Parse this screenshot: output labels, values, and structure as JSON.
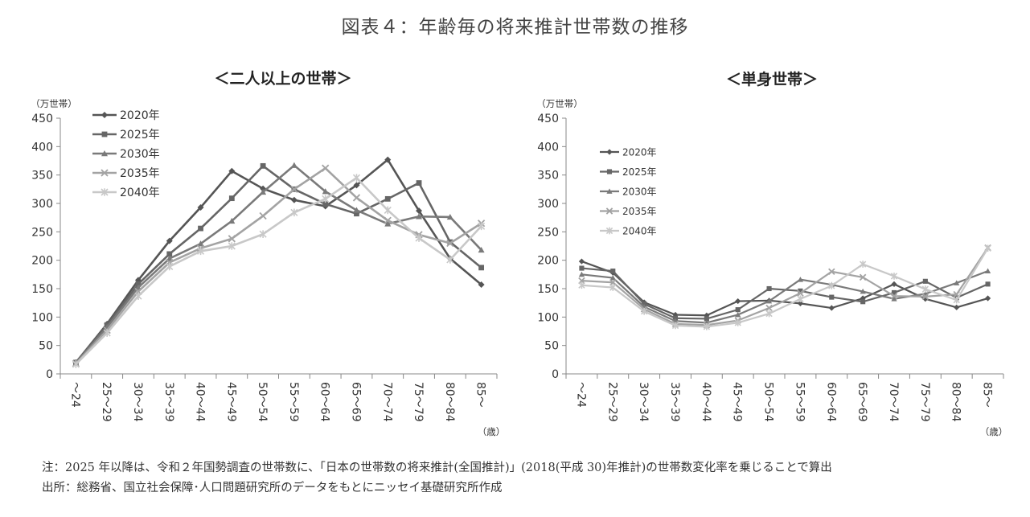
{
  "title": "図表４：年齢毎の将来推計世帯数の推移",
  "notes": {
    "note": "注：2025 年以降は、令和２年国勢調査の世帯数に、「日本の世帯数の将来推計(全国推計)」(2018(平成 30)年推計)の世帯数変化率を乗じることで算出",
    "source": "出所：総務省、国立社会保障･人口問題研究所のデータをもとにニッセイ基礎研究所作成"
  },
  "series_colors": {
    "2020年": "#555555",
    "2025年": "#666666",
    "2030年": "#7a7a7a",
    "2035年": "#a3a3a3",
    "2040年": "#c8c8c8"
  },
  "series_markers": {
    "2020年": "diamond",
    "2025年": "square",
    "2030年": "triangle",
    "2035年": "x",
    "2040年": "star"
  },
  "chart_data": [
    {
      "type": "line",
      "title": "＜二人以上の世帯＞",
      "ylabel": "（万世帯）",
      "xlabel": "（歳）",
      "ylim": [
        0,
        450
      ],
      "yticks": [
        0,
        50,
        100,
        150,
        200,
        250,
        300,
        350,
        400,
        450
      ],
      "legend_position": "top-left",
      "categories": [
        "～24",
        "25～29",
        "30～34",
        "35～39",
        "40～44",
        "45～49",
        "50～54",
        "55～59",
        "60～64",
        "65～69",
        "70～74",
        "75～79",
        "80～84",
        "85～"
      ],
      "series": [
        {
          "name": "2020年",
          "values": [
            20,
            88,
            165,
            234,
            293,
            357,
            326,
            306,
            295,
            332,
            377,
            287,
            203,
            157
          ]
        },
        {
          "name": "2025年",
          "values": [
            20,
            86,
            158,
            211,
            256,
            309,
            366,
            325,
            299,
            282,
            308,
            336,
            232,
            187
          ]
        },
        {
          "name": "2030年",
          "values": [
            19,
            82,
            152,
            203,
            229,
            269,
            320,
            367,
            321,
            288,
            264,
            277,
            276,
            218
          ]
        },
        {
          "name": "2035年",
          "values": [
            18,
            77,
            145,
            196,
            221,
            238,
            278,
            325,
            362,
            310,
            270,
            245,
            230,
            265
          ]
        },
        {
          "name": "2040年",
          "values": [
            17,
            72,
            137,
            189,
            216,
            225,
            246,
            284,
            308,
            345,
            288,
            239,
            201,
            260
          ]
        }
      ]
    },
    {
      "type": "line",
      "title": "＜単身世帯＞",
      "ylabel": "（万世帯）",
      "xlabel": "（歳）",
      "ylim": [
        0,
        450
      ],
      "yticks": [
        0,
        50,
        100,
        150,
        200,
        250,
        300,
        350,
        400,
        450
      ],
      "legend_position": "top-left",
      "categories": [
        "～24",
        "25～29",
        "30～34",
        "35～39",
        "40～44",
        "45～49",
        "50～54",
        "55～59",
        "60～64",
        "65～69",
        "70～74",
        "75～79",
        "80～84",
        "85～"
      ],
      "series": [
        {
          "name": "2020年",
          "values": [
            198,
            178,
            126,
            104,
            103,
            128,
            129,
            124,
            116,
            133,
            158,
            132,
            117,
            133
          ]
        },
        {
          "name": "2025年",
          "values": [
            186,
            181,
            123,
            98,
            97,
            113,
            150,
            146,
            135,
            127,
            143,
            163,
            134,
            158
          ]
        },
        {
          "name": "2030年",
          "values": [
            175,
            169,
            118,
            93,
            90,
            104,
            128,
            166,
            157,
            145,
            132,
            141,
            160,
            181
          ]
        },
        {
          "name": "2035年",
          "values": [
            164,
            161,
            114,
            88,
            86,
            94,
            116,
            142,
            180,
            170,
            137,
            136,
            140,
            222
          ]
        },
        {
          "name": "2040年",
          "values": [
            156,
            152,
            110,
            85,
            83,
            90,
            106,
            132,
            155,
            193,
            172,
            149,
            130,
            221
          ]
        }
      ]
    }
  ]
}
